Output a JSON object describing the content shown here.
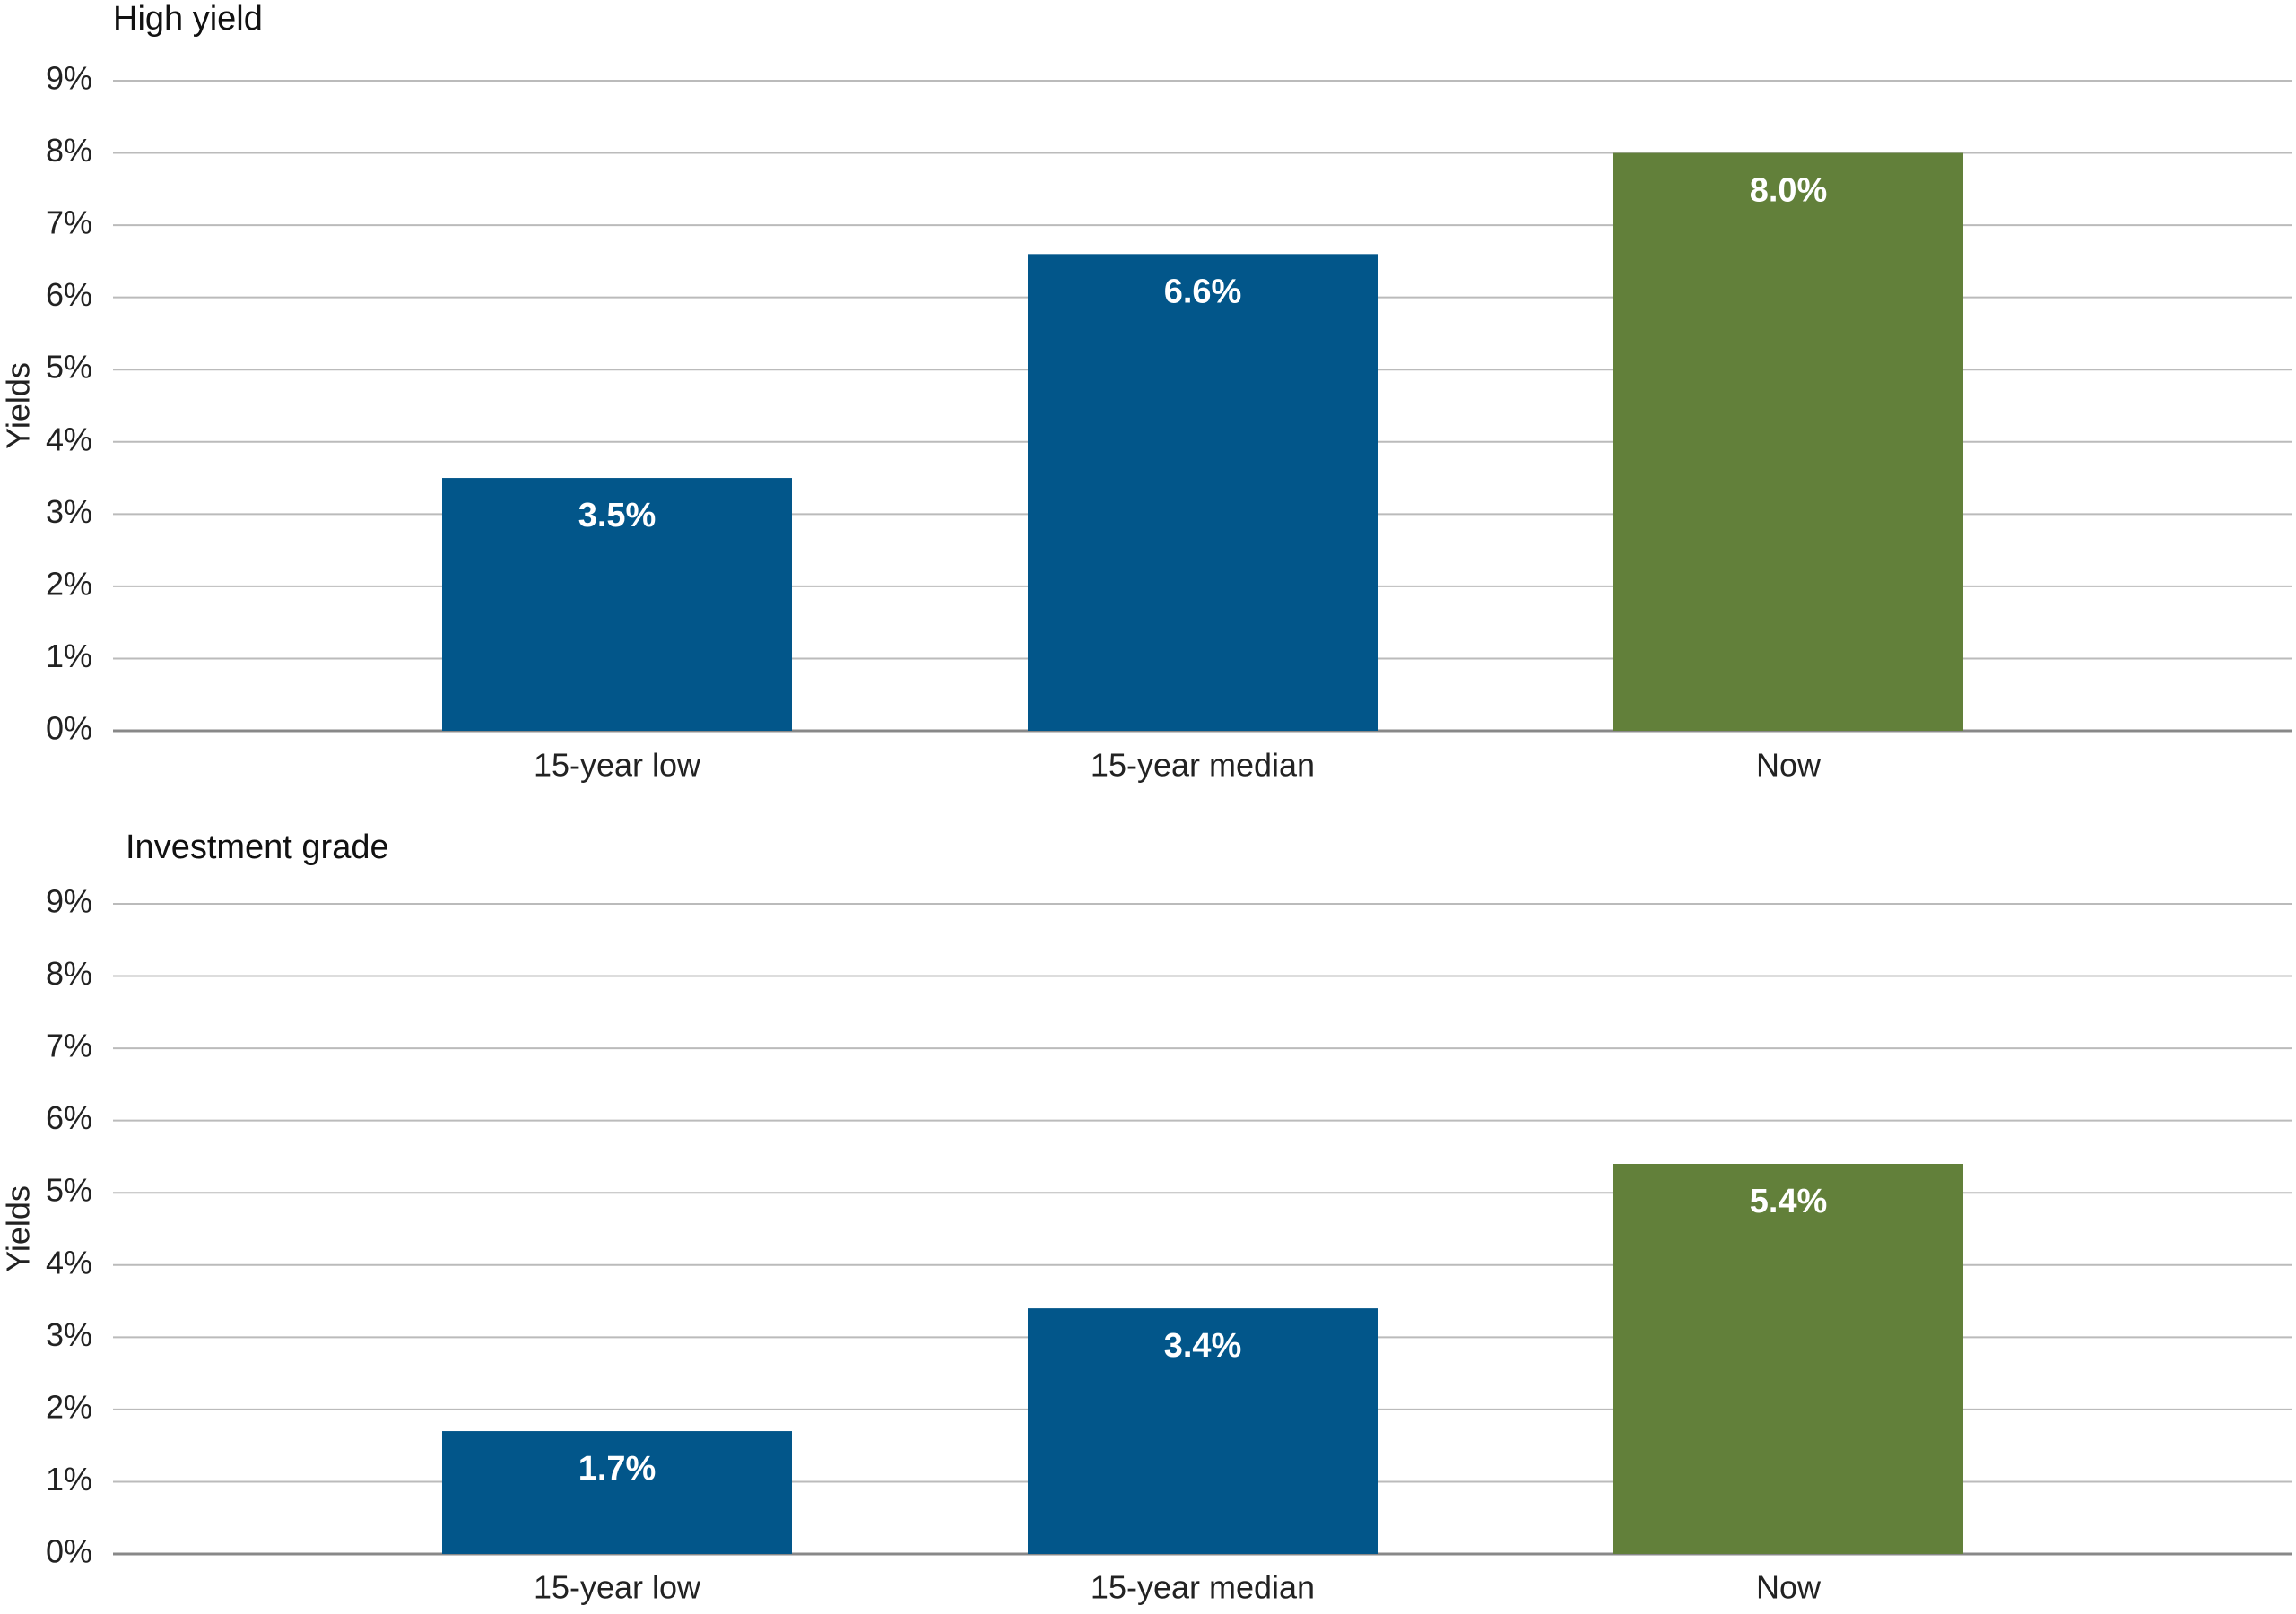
{
  "chart_data": [
    {
      "type": "bar",
      "title": "High yield",
      "y_label": "Yields",
      "categories": [
        "15-year low",
        "15-year median",
        "Now"
      ],
      "values": [
        3.5,
        6.6,
        8.0
      ],
      "value_labels": [
        "3.5%",
        "6.6%",
        "8.0%"
      ],
      "colors": [
        "#02568a",
        "#02568a",
        "#62803a"
      ],
      "ylim": [
        0,
        9
      ],
      "yticks": [
        {
          "value": 0,
          "label": "0%"
        },
        {
          "value": 1,
          "label": "1%"
        },
        {
          "value": 2,
          "label": "2%"
        },
        {
          "value": 3,
          "label": "3%"
        },
        {
          "value": 4,
          "label": "4%"
        },
        {
          "value": 5,
          "label": "5%"
        },
        {
          "value": 6,
          "label": "6%"
        },
        {
          "value": 7,
          "label": "7%"
        },
        {
          "value": 8,
          "label": "8%"
        },
        {
          "value": 9,
          "label": "9%"
        }
      ],
      "grid": true
    },
    {
      "type": "bar",
      "title": "Investment grade",
      "y_label": "Yields",
      "categories": [
        "15-year low",
        "15-year median",
        "Now"
      ],
      "values": [
        1.7,
        3.4,
        5.4
      ],
      "value_labels": [
        "1.7%",
        "3.4%",
        "5.4%"
      ],
      "colors": [
        "#02568a",
        "#02568a",
        "#62803a"
      ],
      "ylim": [
        0,
        9
      ],
      "yticks": [
        {
          "value": 0,
          "label": "0%"
        },
        {
          "value": 1,
          "label": "1%"
        },
        {
          "value": 2,
          "label": "2%"
        },
        {
          "value": 3,
          "label": "3%"
        },
        {
          "value": 4,
          "label": "4%"
        },
        {
          "value": 5,
          "label": "5%"
        },
        {
          "value": 6,
          "label": "6%"
        },
        {
          "value": 7,
          "label": "7%"
        },
        {
          "value": 8,
          "label": "8%"
        },
        {
          "value": 9,
          "label": "9%"
        }
      ],
      "grid": true
    }
  ]
}
